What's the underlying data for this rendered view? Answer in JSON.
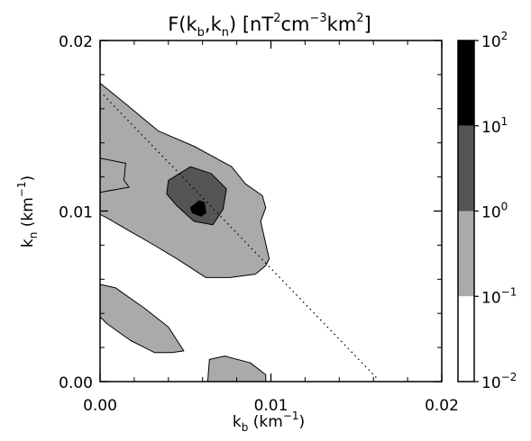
{
  "chart_data": {
    "type": "contour",
    "title": "F(k_b,k_n)  [nT²cm⁻³km²]",
    "title_parts": {
      "lead": "F(k",
      "sub1": "b",
      "mid": ",k",
      "sub2": "n",
      "close": ")  [nT",
      "sup1": "2",
      "cm": "cm",
      "sup2": "−3",
      "km": "km",
      "sup3": "2",
      "end": "]"
    },
    "xlabel": {
      "base": "k",
      "sub": "b",
      "unit_open": " (km",
      "unit_exp": "−1",
      "unit_close": ")"
    },
    "ylabel": {
      "base": "k",
      "sub": "n",
      "unit_open": " (km",
      "unit_exp": "−1",
      "unit_close": ")"
    },
    "xlim": [
      0.0,
      0.02
    ],
    "ylim": [
      0.0,
      0.02
    ],
    "x_ticks": [
      0.0,
      0.01,
      0.02
    ],
    "x_tick_labels": [
      "0.00",
      "0.01",
      "0.02"
    ],
    "y_ticks": [
      0.0,
      0.01,
      0.02
    ],
    "y_tick_labels": [
      "0.00",
      "0.01",
      "0.02"
    ],
    "colorbar": {
      "scale": "log",
      "levels": [
        {
          "label_base": "10",
          "label_exp": "2",
          "value": 100,
          "color": "#000000"
        },
        {
          "label_base": "10",
          "label_exp": "1",
          "value": 10,
          "color": "#555555"
        },
        {
          "label_base": "10",
          "label_exp": "0",
          "value": 1,
          "color": "#aaaaaa"
        },
        {
          "label_base": "10",
          "label_exp": "−1",
          "value": 0.1,
          "color": "#ffffff"
        },
        {
          "label_base": "10",
          "label_exp": "−2",
          "value": 0.01,
          "color": "#ffffff"
        }
      ]
    },
    "bands": [
      {
        "name": "0.1-1",
        "color": "#aaaaaa"
      },
      {
        "name": "1-10",
        "color": "#555555"
      },
      {
        "name": "10-100",
        "color": "#000000"
      }
    ],
    "regions": [
      {
        "level": "0.1-1",
        "points": [
          [
            0.0,
            0.0175
          ],
          [
            0.0016,
            0.0162
          ],
          [
            0.0034,
            0.0147
          ],
          [
            0.0055,
            0.0138
          ],
          [
            0.0077,
            0.0126
          ],
          [
            0.0085,
            0.0116
          ],
          [
            0.0095,
            0.0109
          ],
          [
            0.0097,
            0.0102
          ],
          [
            0.0094,
            0.0094
          ],
          [
            0.0099,
            0.0072
          ],
          [
            0.0097,
            0.0068
          ],
          [
            0.0091,
            0.0063
          ],
          [
            0.0076,
            0.0061
          ],
          [
            0.0062,
            0.0061
          ],
          [
            0.0045,
            0.0072
          ],
          [
            0.003,
            0.0081
          ],
          [
            0.0016,
            0.0089
          ],
          [
            0.0004,
            0.0096
          ],
          [
            0.0,
            0.0098
          ]
        ]
      },
      {
        "level": "0.1-1",
        "points": [
          [
            0.0,
            0.0111
          ],
          [
            0.0017,
            0.0114
          ],
          [
            0.0014,
            0.0118
          ],
          [
            0.0015,
            0.0128
          ],
          [
            0.0,
            0.0131
          ]
        ]
      },
      {
        "level": "0.1-1",
        "points": [
          [
            0.0,
            0.0057
          ],
          [
            0.0009,
            0.0055
          ],
          [
            0.0026,
            0.0043
          ],
          [
            0.004,
            0.0032
          ],
          [
            0.0049,
            0.0018
          ],
          [
            0.0042,
            0.0017
          ],
          [
            0.0032,
            0.0017
          ],
          [
            0.0018,
            0.0024
          ],
          [
            0.0004,
            0.0034
          ],
          [
            0.0,
            0.0038
          ]
        ]
      },
      {
        "level": "0.1-1",
        "points": [
          [
            0.0063,
            0.0
          ],
          [
            0.0064,
            0.0013
          ],
          [
            0.0073,
            0.0015
          ],
          [
            0.0088,
            0.0011
          ],
          [
            0.0097,
            0.0004
          ],
          [
            0.0097,
            0.0
          ]
        ]
      },
      {
        "level": "1-10",
        "points": [
          [
            0.004,
            0.0118
          ],
          [
            0.0053,
            0.0126
          ],
          [
            0.0065,
            0.0122
          ],
          [
            0.0074,
            0.0113
          ],
          [
            0.0072,
            0.0101
          ],
          [
            0.0066,
            0.0092
          ],
          [
            0.0055,
            0.0094
          ],
          [
            0.0045,
            0.0103
          ],
          [
            0.0039,
            0.011
          ]
        ]
      },
      {
        "level": "10-100",
        "points": [
          [
            0.0053,
            0.0102
          ],
          [
            0.0058,
            0.0106
          ],
          [
            0.0061,
            0.0105
          ],
          [
            0.0062,
            0.0099
          ],
          [
            0.0059,
            0.0097
          ],
          [
            0.0054,
            0.0099
          ]
        ]
      }
    ],
    "trend_line": {
      "style": "dotted",
      "x": [
        0.0002,
        0.0163
      ],
      "y": [
        0.0168,
        0.0001
      ]
    }
  }
}
